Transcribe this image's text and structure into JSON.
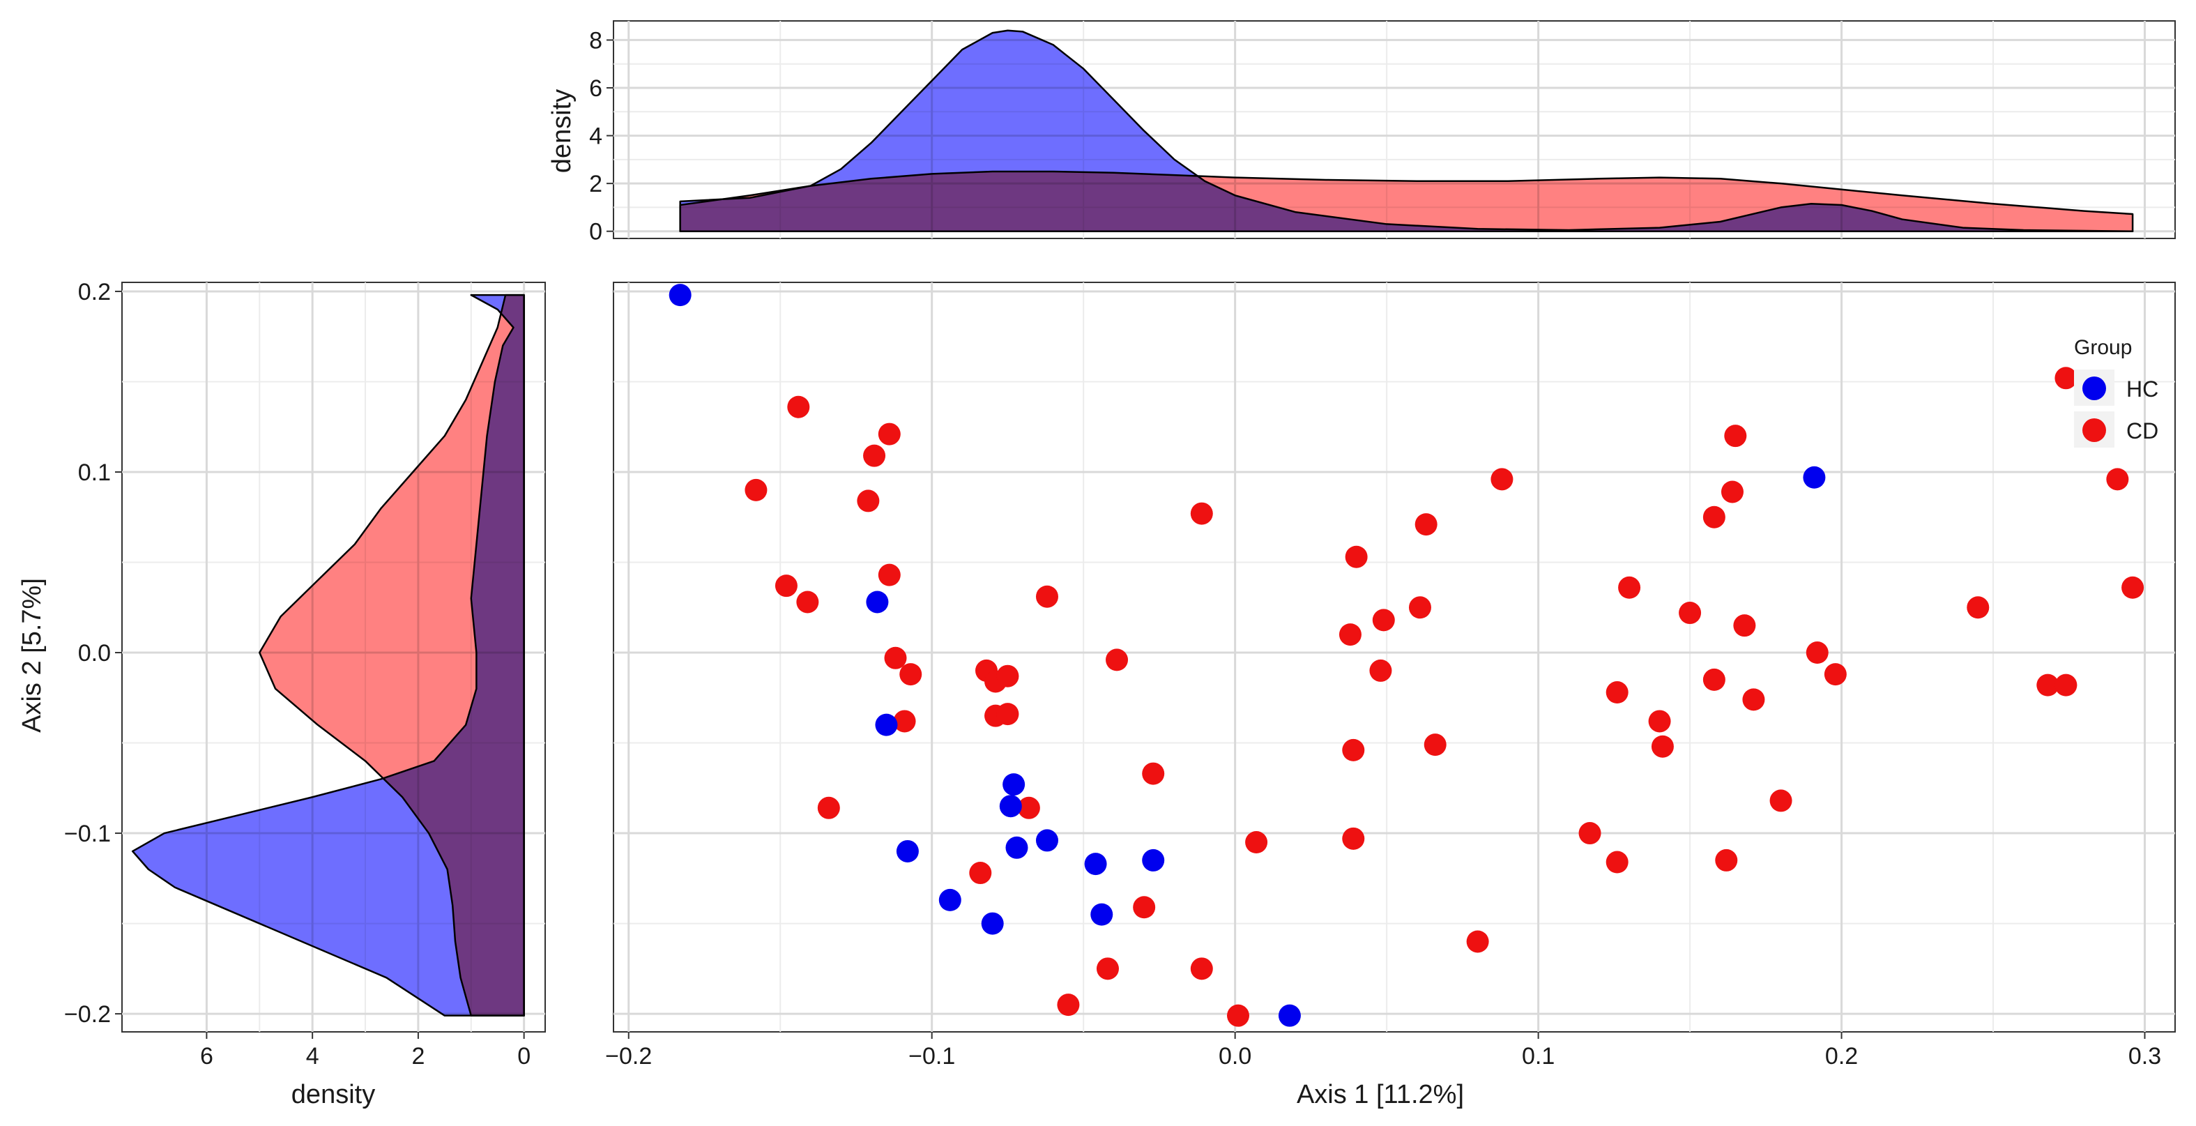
{
  "chart_data": [
    {
      "id": "scatter",
      "type": "scatter",
      "xlabel": "Axis 1 [11.2%]",
      "ylabel": "Axis 2 [5.7%]",
      "xlim": [
        -0.205,
        0.31
      ],
      "ylim": [
        -0.21,
        0.205
      ],
      "xticks": [
        -0.2,
        -0.1,
        0.0,
        0.1,
        0.2,
        0.3
      ],
      "xtick_labels": [
        "−0.2",
        "−0.1",
        "0.0",
        "0.1",
        "0.2",
        "0.3"
      ],
      "yticks": [
        -0.2,
        -0.1,
        0.0,
        0.1,
        0.2
      ],
      "ytick_labels": [
        "−0.2",
        "−0.1",
        "0.0",
        "0.1",
        "0.2"
      ],
      "grid": true,
      "legend": {
        "title": "Group",
        "position": "right",
        "entries": [
          {
            "label": "HC",
            "color": "#0000ee"
          },
          {
            "label": "CD",
            "color": "#ee1111"
          }
        ]
      },
      "series": [
        {
          "name": "HC",
          "color": "#0000ee",
          "points": [
            [
              -0.183,
              0.198
            ],
            [
              -0.118,
              0.028
            ],
            [
              -0.115,
              -0.04
            ],
            [
              -0.108,
              -0.11
            ],
            [
              -0.094,
              -0.137
            ],
            [
              -0.08,
              -0.15
            ],
            [
              -0.073,
              -0.073
            ],
            [
              -0.074,
              -0.085
            ],
            [
              -0.072,
              -0.108
            ],
            [
              -0.062,
              -0.104
            ],
            [
              -0.046,
              -0.117
            ],
            [
              -0.044,
              -0.145
            ],
            [
              -0.027,
              -0.115
            ],
            [
              0.018,
              -0.201
            ],
            [
              0.191,
              0.097
            ]
          ]
        },
        {
          "name": "CD",
          "color": "#ee1111",
          "points": [
            [
              -0.158,
              0.09
            ],
            [
              -0.144,
              0.136
            ],
            [
              -0.148,
              0.037
            ],
            [
              -0.141,
              0.028
            ],
            [
              -0.134,
              -0.086
            ],
            [
              -0.121,
              0.084
            ],
            [
              -0.119,
              0.109
            ],
            [
              -0.114,
              0.121
            ],
            [
              -0.114,
              0.043
            ],
            [
              -0.112,
              -0.003
            ],
            [
              -0.107,
              -0.012
            ],
            [
              -0.109,
              -0.038
            ],
            [
              -0.084,
              -0.122
            ],
            [
              -0.082,
              -0.01
            ],
            [
              -0.079,
              -0.016
            ],
            [
              -0.079,
              -0.035
            ],
            [
              -0.075,
              -0.013
            ],
            [
              -0.075,
              -0.034
            ],
            [
              -0.068,
              -0.086
            ],
            [
              -0.062,
              0.031
            ],
            [
              -0.055,
              -0.195
            ],
            [
              -0.042,
              -0.175
            ],
            [
              -0.039,
              -0.004
            ],
            [
              -0.03,
              -0.141
            ],
            [
              -0.027,
              -0.067
            ],
            [
              -0.011,
              -0.175
            ],
            [
              -0.011,
              0.077
            ],
            [
              0.001,
              -0.201
            ],
            [
              0.007,
              -0.105
            ],
            [
              0.038,
              0.01
            ],
            [
              0.039,
              -0.054
            ],
            [
              0.039,
              -0.103
            ],
            [
              0.04,
              0.053
            ],
            [
              0.048,
              -0.01
            ],
            [
              0.049,
              0.018
            ],
            [
              0.061,
              0.025
            ],
            [
              0.063,
              0.071
            ],
            [
              0.066,
              -0.051
            ],
            [
              0.08,
              -0.16
            ],
            [
              0.088,
              0.096
            ],
            [
              0.117,
              -0.1
            ],
            [
              0.126,
              -0.022
            ],
            [
              0.126,
              -0.116
            ],
            [
              0.13,
              0.036
            ],
            [
              0.14,
              -0.038
            ],
            [
              0.141,
              -0.052
            ],
            [
              0.15,
              0.022
            ],
            [
              0.158,
              0.075
            ],
            [
              0.158,
              -0.015
            ],
            [
              0.162,
              -0.115
            ],
            [
              0.164,
              0.089
            ],
            [
              0.165,
              0.12
            ],
            [
              0.168,
              0.015
            ],
            [
              0.171,
              -0.026
            ],
            [
              0.18,
              -0.082
            ],
            [
              0.192,
              0.0
            ],
            [
              0.198,
              -0.012
            ],
            [
              0.245,
              0.025
            ],
            [
              0.268,
              -0.018
            ],
            [
              0.274,
              -0.018
            ],
            [
              0.274,
              0.152
            ],
            [
              0.291,
              0.096
            ],
            [
              0.296,
              0.036
            ]
          ]
        }
      ]
    },
    {
      "id": "top_density",
      "type": "area",
      "ylabel": "density",
      "x_range": [
        -0.183,
        0.296
      ],
      "ylim": [
        -0.3,
        8.8
      ],
      "yticks": [
        0,
        2,
        4,
        6,
        8
      ],
      "ytick_labels": [
        "0",
        "2",
        "4",
        "6",
        "8"
      ],
      "series": [
        {
          "name": "CD",
          "color": "#ff7070",
          "x": [
            -0.183,
            -0.16,
            -0.14,
            -0.12,
            -0.1,
            -0.08,
            -0.06,
            -0.04,
            -0.02,
            0.0,
            0.03,
            0.06,
            0.09,
            0.12,
            0.14,
            0.16,
            0.18,
            0.2,
            0.22,
            0.25,
            0.28,
            0.296
          ],
          "y": [
            1.1,
            1.5,
            1.9,
            2.2,
            2.4,
            2.5,
            2.5,
            2.45,
            2.35,
            2.25,
            2.15,
            2.1,
            2.1,
            2.2,
            2.25,
            2.2,
            2.0,
            1.75,
            1.5,
            1.15,
            0.85,
            0.72
          ]
        },
        {
          "name": "HC",
          "color": "#5a5aff",
          "x": [
            -0.183,
            -0.16,
            -0.14,
            -0.13,
            -0.12,
            -0.11,
            -0.1,
            -0.09,
            -0.08,
            -0.075,
            -0.07,
            -0.06,
            -0.05,
            -0.04,
            -0.03,
            -0.02,
            -0.01,
            0.0,
            0.02,
            0.05,
            0.08,
            0.11,
            0.14,
            0.16,
            0.17,
            0.18,
            0.19,
            0.2,
            0.21,
            0.22,
            0.24,
            0.26,
            0.296
          ],
          "y": [
            1.25,
            1.4,
            1.9,
            2.6,
            3.7,
            5.0,
            6.3,
            7.6,
            8.3,
            8.4,
            8.35,
            7.8,
            6.8,
            5.5,
            4.2,
            3.0,
            2.1,
            1.5,
            0.8,
            0.3,
            0.1,
            0.05,
            0.15,
            0.4,
            0.7,
            1.0,
            1.15,
            1.1,
            0.85,
            0.5,
            0.15,
            0.05,
            0.0
          ]
        }
      ]
    },
    {
      "id": "left_density",
      "type": "area",
      "xlabel": "density",
      "y_range": [
        -0.201,
        0.198
      ],
      "xlim": [
        7.6,
        -0.4
      ],
      "xticks": [
        6,
        4,
        2,
        0
      ],
      "xtick_labels": [
        "6",
        "4",
        "2",
        "0"
      ],
      "series": [
        {
          "name": "CD",
          "color": "#ff7070",
          "y": [
            -0.201,
            -0.18,
            -0.16,
            -0.14,
            -0.12,
            -0.1,
            -0.08,
            -0.06,
            -0.04,
            -0.02,
            0.0,
            0.02,
            0.04,
            0.06,
            0.08,
            0.1,
            0.12,
            0.14,
            0.16,
            0.18,
            0.198
          ],
          "x": [
            1.0,
            1.2,
            1.3,
            1.35,
            1.45,
            1.8,
            2.3,
            3.0,
            3.9,
            4.7,
            5.0,
            4.6,
            3.9,
            3.2,
            2.7,
            2.1,
            1.5,
            1.1,
            0.8,
            0.5,
            0.35
          ]
        },
        {
          "name": "HC",
          "color": "#5a5aff",
          "y": [
            -0.201,
            -0.18,
            -0.16,
            -0.14,
            -0.13,
            -0.12,
            -0.11,
            -0.1,
            -0.09,
            -0.08,
            -0.07,
            -0.06,
            -0.04,
            -0.02,
            0.0,
            0.03,
            0.06,
            0.09,
            0.12,
            0.15,
            0.17,
            0.18,
            0.19,
            0.198
          ],
          "x": [
            1.5,
            2.6,
            4.2,
            5.8,
            6.6,
            7.1,
            7.4,
            6.8,
            5.4,
            4.0,
            2.7,
            1.7,
            1.1,
            0.9,
            0.9,
            1.0,
            0.9,
            0.8,
            0.7,
            0.55,
            0.4,
            0.2,
            0.5,
            1.0
          ]
        }
      ]
    }
  ]
}
